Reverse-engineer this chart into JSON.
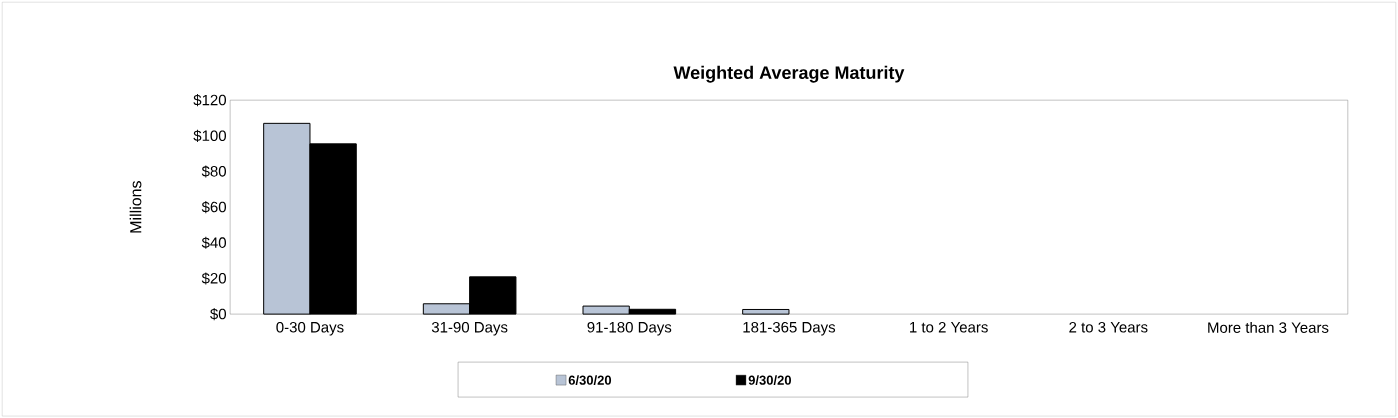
{
  "chart_data": {
    "type": "bar",
    "title": "Weighted Average Maturity",
    "ylabel": "Millions",
    "categories": [
      "0-30 Days",
      "31-90 Days",
      "91-180 Days",
      "181-365 Days",
      "1 to 2 Years",
      "2 to 3 Years",
      "More than 3 Years"
    ],
    "series": [
      {
        "name": "6/30/20",
        "color": "#b8c4d6",
        "values": [
          107,
          5.8,
          4.5,
          2.6,
          null,
          null,
          null
        ]
      },
      {
        "name": "9/30/20",
        "color": "#000000",
        "values": [
          95.5,
          20.9,
          2.7,
          null,
          null,
          null,
          null
        ]
      }
    ],
    "ylim": [
      0,
      120
    ],
    "yticks": [
      {
        "value": 0,
        "label": "$0"
      },
      {
        "value": 20,
        "label": "$20"
      },
      {
        "value": 40,
        "label": "$40"
      },
      {
        "value": 60,
        "label": "$60"
      },
      {
        "value": 80,
        "label": "$80"
      },
      {
        "value": 100,
        "label": "$100"
      },
      {
        "value": 120,
        "label": "$120"
      }
    ],
    "legend": "bottom",
    "grid": false
  }
}
